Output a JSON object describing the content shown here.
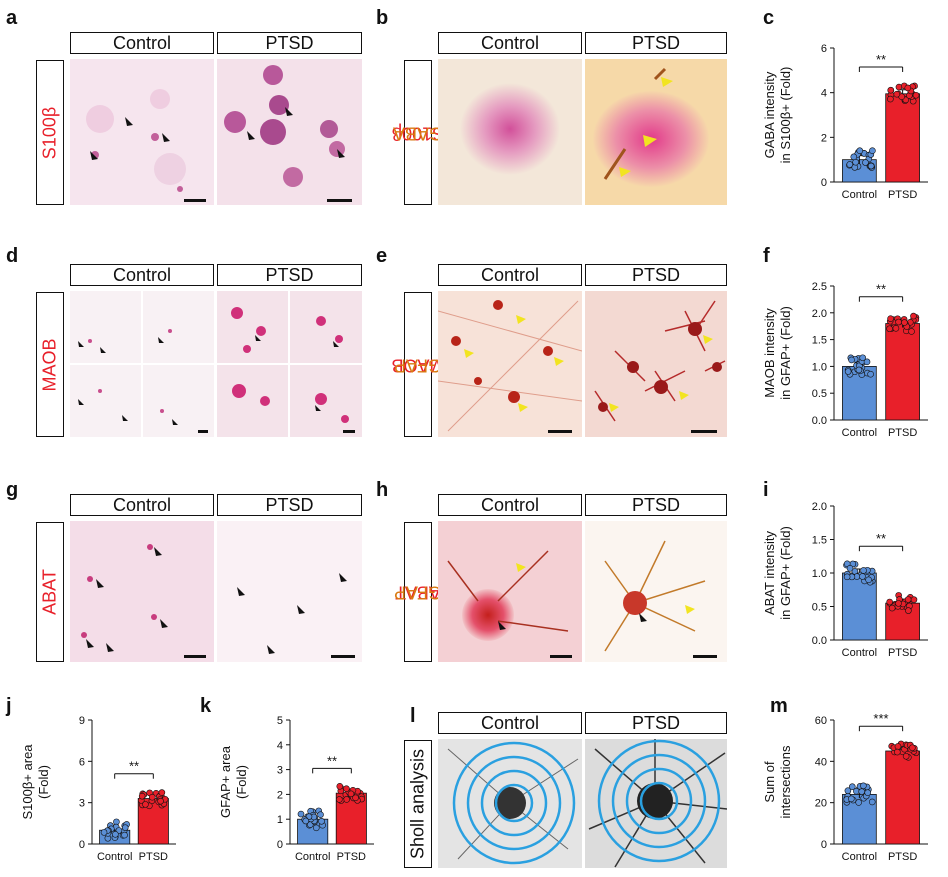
{
  "panels": {
    "a": {
      "label": "a",
      "conditions": [
        "Control",
        "PTSD"
      ],
      "stain": "S100β"
    },
    "b": {
      "label": "b",
      "conditions": [
        "Control",
        "PTSD"
      ],
      "stain1": "S100β",
      "stain2": "GABA"
    },
    "c": {
      "label": "c"
    },
    "d": {
      "label": "d",
      "conditions": [
        "Control",
        "PTSD"
      ],
      "stain": "MAOB"
    },
    "e": {
      "label": "e",
      "conditions": [
        "Control",
        "PTSD"
      ],
      "stain1": "MAOB",
      "stain2": "GFAP"
    },
    "f": {
      "label": "f"
    },
    "g": {
      "label": "g",
      "conditions": [
        "Control",
        "PTSD"
      ],
      "stain": "ABAT"
    },
    "h": {
      "label": "h",
      "conditions": [
        "Control",
        "PTSD"
      ],
      "stain1": "ABAT",
      "stain2": "GFAP"
    },
    "i": {
      "label": "i"
    },
    "j": {
      "label": "j"
    },
    "k": {
      "label": "k"
    },
    "l": {
      "label": "l",
      "conditions": [
        "Control",
        "PTSD"
      ],
      "stain": "Sholl analysis"
    },
    "m": {
      "label": "m"
    }
  },
  "colors": {
    "control": "#5b8fd6",
    "ptsd": "#e8202a",
    "stain_red": "#e8202a",
    "stain_orange": "#d97a10"
  },
  "chart_data": [
    {
      "id": "c",
      "type": "bar",
      "categories": [
        "Control",
        "PTSD"
      ],
      "values": [
        1.0,
        3.95
      ],
      "ylabel": "GABA intensity\nin S100β+ (Fold)",
      "ylim": [
        0,
        6
      ],
      "yticks": [
        0,
        2,
        4,
        6
      ],
      "significance": "**"
    },
    {
      "id": "f",
      "type": "bar",
      "categories": [
        "Control",
        "PTSD"
      ],
      "values": [
        1.0,
        1.8
      ],
      "ylabel": "MAOB intensity\nin GFAP+ (Fold)",
      "ylim": [
        0,
        2.5
      ],
      "yticks": [
        0.0,
        0.5,
        1.0,
        1.5,
        2.0,
        2.5
      ],
      "significance": "**"
    },
    {
      "id": "i",
      "type": "bar",
      "categories": [
        "Control",
        "PTSD"
      ],
      "values": [
        1.0,
        0.55
      ],
      "ylabel": "ABAT intensity\nin GFAP+ (Fold)",
      "ylim": [
        0,
        2.0
      ],
      "yticks": [
        0.0,
        0.5,
        1.0,
        1.5,
        2.0
      ],
      "significance": "**"
    },
    {
      "id": "j",
      "type": "bar",
      "categories": [
        "Control",
        "PTSD"
      ],
      "values": [
        1.0,
        3.3
      ],
      "ylabel": "S100β+ area\n(Fold)",
      "ylim": [
        0,
        9
      ],
      "yticks": [
        0,
        3,
        6,
        9
      ],
      "significance": "**"
    },
    {
      "id": "k",
      "type": "bar",
      "categories": [
        "Control",
        "PTSD"
      ],
      "values": [
        1.0,
        2.05
      ],
      "ylabel": "GFAP+ area\n(Fold)",
      "ylim": [
        0,
        5
      ],
      "yticks": [
        0,
        1,
        2,
        3,
        4,
        5
      ],
      "significance": "**"
    },
    {
      "id": "m",
      "type": "bar",
      "categories": [
        "Control",
        "PTSD"
      ],
      "values": [
        24,
        45
      ],
      "ylabel": "Sum of\nintersections",
      "ylim": [
        0,
        60
      ],
      "yticks": [
        0,
        20,
        40,
        60
      ],
      "significance": "***"
    }
  ]
}
